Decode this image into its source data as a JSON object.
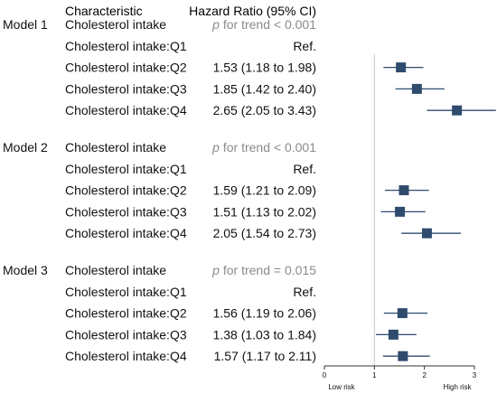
{
  "chart_data": {
    "type": "forest",
    "headers": {
      "characteristic": "Characteristic",
      "hr": "Hazard Ratio (95% CI)"
    },
    "xlim": [
      0,
      3
    ],
    "x_ticks": [
      "0",
      "1",
      "2",
      "3"
    ],
    "reference_line": 1,
    "x_axis_labels": {
      "left": "Low risk",
      "right": "High risk"
    },
    "colors": {
      "marker": "#2f4b6e",
      "reference_line": "#c8c8c8",
      "text": "#111111",
      "trend_text": "#8a8a8a"
    },
    "models": [
      {
        "name": "Model 1",
        "overall_label": "Cholesterol intake",
        "trend": {
          "p": "p",
          "text": " for trend < 0.001"
        },
        "rows": [
          {
            "label": "Cholesterol intake:Q1",
            "hr_text": "Ref."
          },
          {
            "label": "Cholesterol intake:Q2",
            "hr_text": "1.53 (1.18 to 1.98)",
            "hr": 1.53,
            "lo": 1.18,
            "hi": 1.98
          },
          {
            "label": "Cholesterol intake:Q3",
            "hr_text": "1.85 (1.42 to 2.40)",
            "hr": 1.85,
            "lo": 1.42,
            "hi": 2.4
          },
          {
            "label": "Cholesterol intake:Q4",
            "hr_text": "2.65 (2.05 to 3.43)",
            "hr": 2.65,
            "lo": 2.05,
            "hi": 3.43
          }
        ]
      },
      {
        "name": "Model 2",
        "overall_label": "Cholesterol intake",
        "trend": {
          "p": "p",
          "text": " for trend < 0.001"
        },
        "rows": [
          {
            "label": "Cholesterol intake:Q1",
            "hr_text": "Ref."
          },
          {
            "label": "Cholesterol intake:Q2",
            "hr_text": "1.59 (1.21 to 2.09)",
            "hr": 1.59,
            "lo": 1.21,
            "hi": 2.09
          },
          {
            "label": "Cholesterol intake:Q3",
            "hr_text": "1.51 (1.13 to 2.02)",
            "hr": 1.51,
            "lo": 1.13,
            "hi": 2.02
          },
          {
            "label": "Cholesterol intake:Q4",
            "hr_text": "2.05 (1.54 to 2.73)",
            "hr": 2.05,
            "lo": 1.54,
            "hi": 2.73
          }
        ]
      },
      {
        "name": "Model 3",
        "overall_label": "Cholesterol intake",
        "trend": {
          "p": "p",
          "text": " for trend = 0.015"
        },
        "rows": [
          {
            "label": "Cholesterol intake:Q1",
            "hr_text": "Ref."
          },
          {
            "label": "Cholesterol intake:Q2",
            "hr_text": "1.56 (1.19 to 2.06)",
            "hr": 1.56,
            "lo": 1.19,
            "hi": 2.06
          },
          {
            "label": "Cholesterol intake:Q3",
            "hr_text": "1.38 (1.03 to 1.84)",
            "hr": 1.38,
            "lo": 1.03,
            "hi": 1.84
          },
          {
            "label": "Cholesterol intake:Q4",
            "hr_text": "1.57 (1.17 to 2.11)",
            "hr": 1.57,
            "lo": 1.17,
            "hi": 2.11
          }
        ]
      }
    ]
  }
}
